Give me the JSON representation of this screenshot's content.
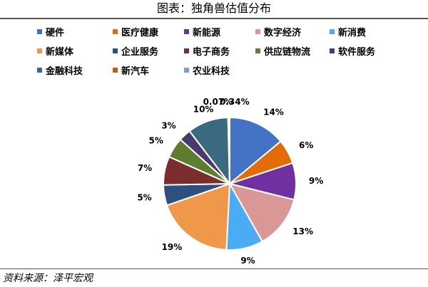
{
  "title": "图表：独角兽估值分布",
  "source": "资料来源：泽平宏观",
  "chart_data": {
    "type": "pie",
    "legend_placement": "top",
    "slices": [
      {
        "name": "硬件",
        "value": 14,
        "label": "14%",
        "color": "#4472C4"
      },
      {
        "name": "医疗健康",
        "value": 6,
        "label": "6%",
        "color": "#E36C09"
      },
      {
        "name": "新能源",
        "value": 9,
        "label": "9%",
        "color": "#7030A0"
      },
      {
        "name": "数字经济",
        "value": 13,
        "label": "13%",
        "color": "#D99795"
      },
      {
        "name": "新消费",
        "value": 9,
        "label": "9%",
        "color": "#4BACF5"
      },
      {
        "name": "新媒体",
        "value": 19,
        "label": "19%",
        "color": "#F0984A"
      },
      {
        "name": "企业服务",
        "value": 5,
        "label": "5%",
        "color": "#2F4F7F"
      },
      {
        "name": "电子商务",
        "value": 7,
        "label": "7%",
        "color": "#7B2C2C"
      },
      {
        "name": "供应链物流",
        "value": 5,
        "label": "5%",
        "color": "#5E7D2E"
      },
      {
        "name": "软件服务",
        "value": 3,
        "label": "3%",
        "color": "#4A3A6B"
      },
      {
        "name": "金融科技",
        "value": 10,
        "label": "10%",
        "color": "#3A6A80"
      },
      {
        "name": "新汽车",
        "value": 0.07,
        "label": "0.07%",
        "color": "#C55A11"
      },
      {
        "name": "农业科技",
        "value": 0.34,
        "label": "0.34%",
        "color": "#7E9BD6"
      }
    ]
  }
}
